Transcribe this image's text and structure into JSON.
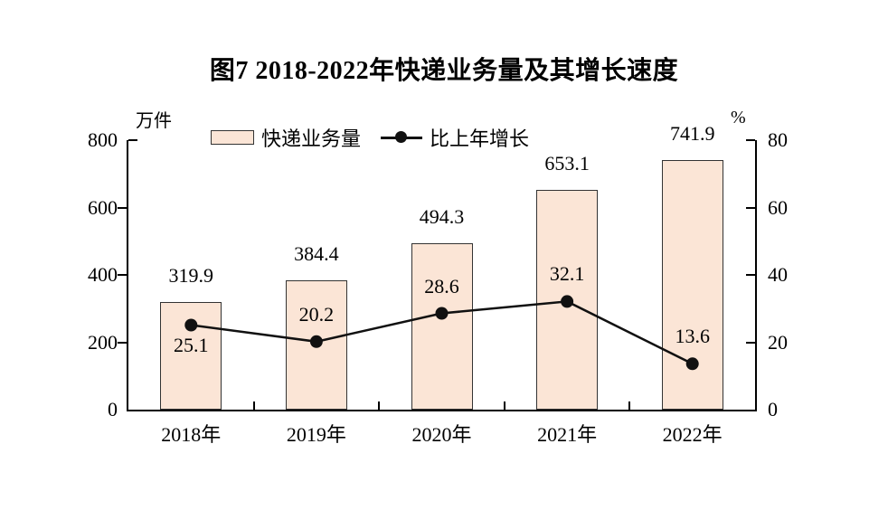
{
  "title": "图7 2018-2022年快递业务量及其增长速度",
  "chart_data": {
    "type": "bar+line",
    "categories": [
      "2018年",
      "2019年",
      "2020年",
      "2021年",
      "2022年"
    ],
    "series": [
      {
        "name": "快递业务量",
        "type": "bar",
        "axis": "left",
        "values": [
          319.9,
          384.4,
          494.3,
          653.1,
          741.9
        ]
      },
      {
        "name": "比上年增长",
        "type": "line",
        "axis": "right",
        "values": [
          25.1,
          20.2,
          28.6,
          32.1,
          13.6
        ]
      }
    ],
    "left_axis": {
      "unit": "万件",
      "min": 0,
      "max": 800,
      "ticks": [
        0,
        200,
        400,
        600,
        800
      ]
    },
    "right_axis": {
      "unit": "%",
      "min": 0,
      "max": 80,
      "ticks": [
        0,
        20,
        40,
        60,
        80
      ]
    },
    "legend_position": "top",
    "grid": false,
    "colors": {
      "bar_fill": "#fbe5d6",
      "bar_border": "#333333",
      "line": "#111111",
      "text": "#000000",
      "background": "#ffffff"
    }
  }
}
